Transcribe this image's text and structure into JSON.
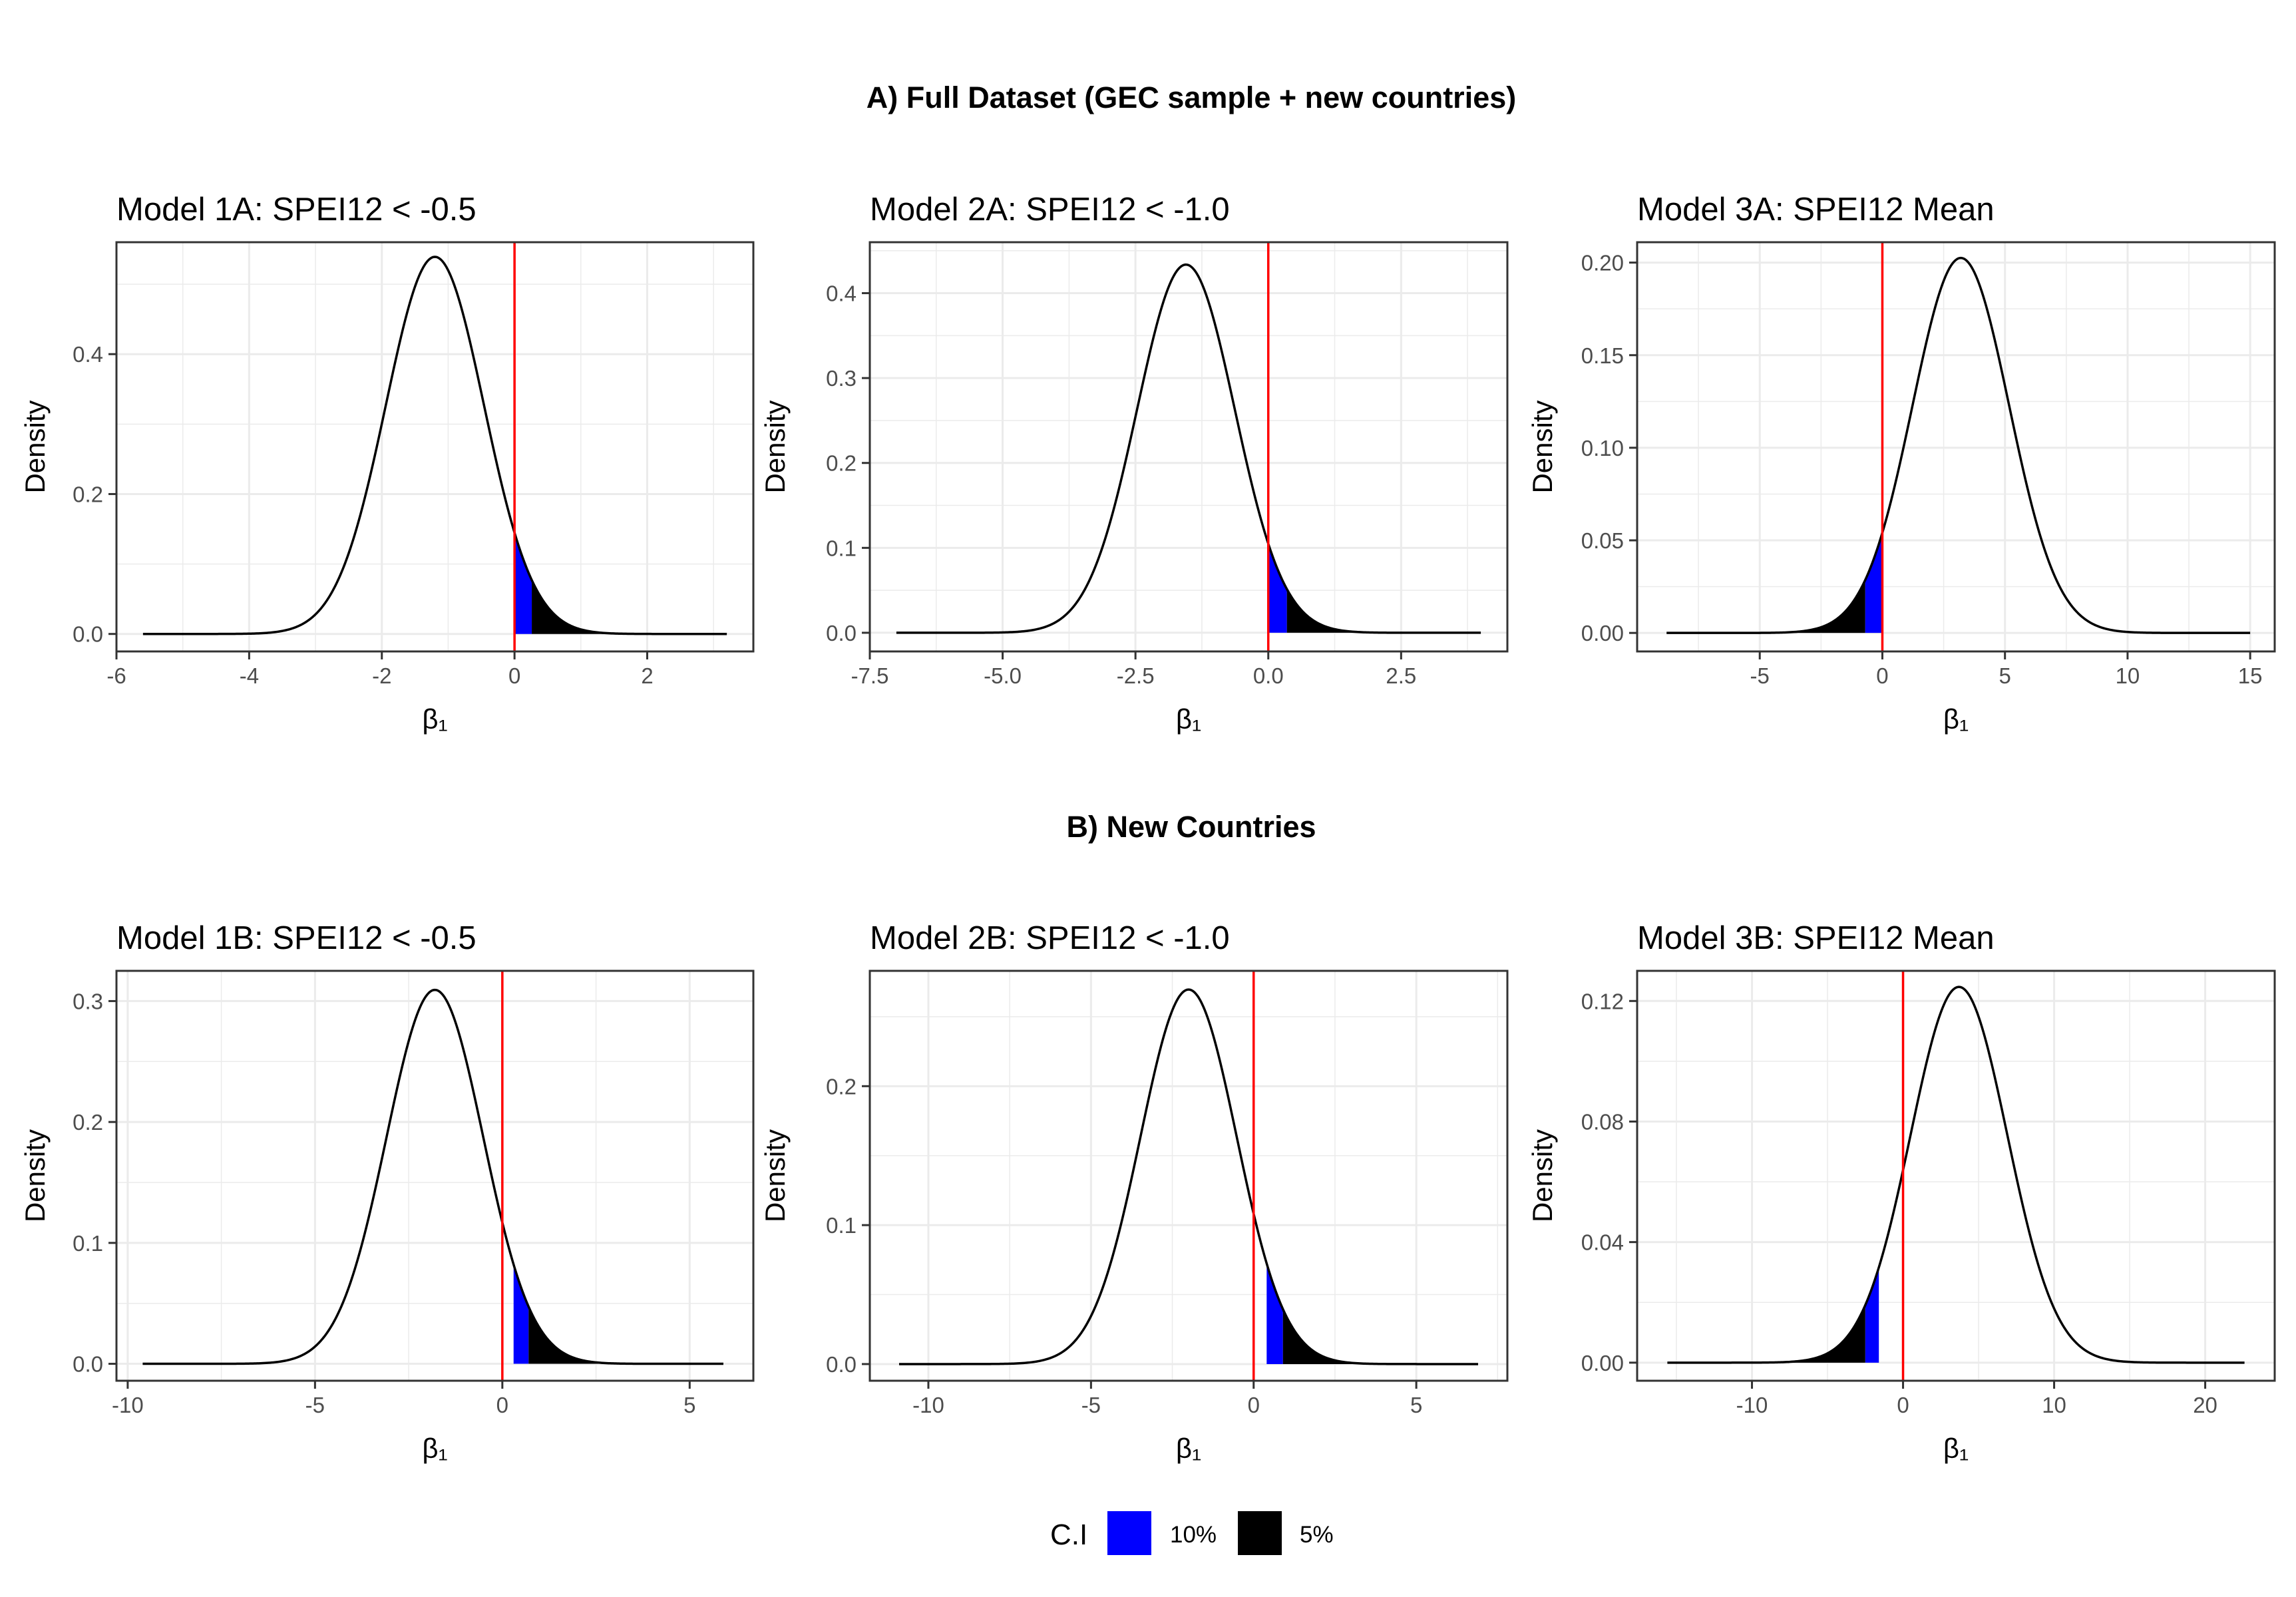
{
  "sections": [
    {
      "title": "A) Full Dataset (GEC sample + new countries)"
    },
    {
      "title": "B) New Countries"
    }
  ],
  "legend": {
    "title": "C.I",
    "items": [
      {
        "label": "10%",
        "color": "#0000ff"
      },
      {
        "label": "5%",
        "color": "#000000"
      }
    ]
  },
  "colors": {
    "curve": "#000000",
    "zero_line": "#ff0000",
    "ci10": "#0000ff",
    "ci5": "#000000",
    "grid": "#ebebeb",
    "frame": "#333333"
  },
  "chart_data": [
    {
      "type": "area",
      "title": "Model 1A: SPEI12 < -0.5",
      "xlabel": "β₁",
      "ylabel": "Density",
      "distribution": "normal",
      "mean": -1.2,
      "sd": 0.74,
      "xlim": [
        -6.0,
        3.6
      ],
      "ylim": [
        -0.025,
        0.56
      ],
      "x_range": [
        -5.6,
        3.2
      ],
      "x_ticks": [
        -6,
        -4,
        -2,
        0,
        2
      ],
      "x_tick_labels": [
        "-6",
        "-4",
        "-2",
        "0",
        "2"
      ],
      "y_ticks": [
        0.0,
        0.2,
        0.4
      ],
      "y_tick_labels": [
        "0.0",
        "0.2",
        "0.4"
      ],
      "vline": 0,
      "ci_10": [
        0.0,
        0.26
      ],
      "ci_5": [
        0.26,
        3.2
      ]
    },
    {
      "type": "area",
      "title": "Model 2A: SPEI12 < -1.0",
      "xlabel": "β₁",
      "ylabel": "Density",
      "distribution": "normal",
      "mean": -1.55,
      "sd": 0.92,
      "xlim": [
        -7.5,
        4.5
      ],
      "ylim": [
        -0.022,
        0.46
      ],
      "x_range": [
        -7.0,
        4.0
      ],
      "x_ticks": [
        -7.5,
        -5.0,
        -2.5,
        0.0,
        2.5
      ],
      "x_tick_labels": [
        "-7.5",
        "-5.0",
        "-2.5",
        "0.0",
        "2.5"
      ],
      "y_ticks": [
        0.0,
        0.1,
        0.2,
        0.3,
        0.4
      ],
      "y_tick_labels": [
        "0.0",
        "0.1",
        "0.2",
        "0.3",
        "0.4"
      ],
      "vline": 0,
      "ci_10": [
        0.0,
        0.35
      ],
      "ci_5": [
        0.35,
        4.0
      ]
    },
    {
      "type": "area",
      "title": "Model 3A: SPEI12 Mean",
      "xlabel": "β₁",
      "ylabel": "Density",
      "distribution": "normal",
      "mean": 3.2,
      "sd": 1.97,
      "xlim": [
        -10,
        16
      ],
      "ylim": [
        -0.01,
        0.211
      ],
      "x_range": [
        -8.8,
        15.0
      ],
      "x_ticks": [
        -5,
        0,
        5,
        10,
        15
      ],
      "x_tick_labels": [
        "-5",
        "0",
        "5",
        "10",
        "15"
      ],
      "y_ticks": [
        0.0,
        0.05,
        0.1,
        0.15,
        0.2
      ],
      "y_tick_labels": [
        "0.00",
        "0.05",
        "0.10",
        "0.15",
        "0.20"
      ],
      "vline": 0,
      "ci_10": [
        -0.7,
        0.0
      ],
      "ci_5": [
        -8.8,
        -0.7
      ]
    },
    {
      "type": "area",
      "title": "Model 1B: SPEI12 < -0.5",
      "xlabel": "β₁",
      "ylabel": "Density",
      "distribution": "normal",
      "mean": -1.8,
      "sd": 1.29,
      "xlim": [
        -10.3,
        6.7
      ],
      "ylim": [
        -0.014,
        0.325
      ],
      "x_range": [
        -9.6,
        5.9
      ],
      "x_ticks": [
        -10,
        -5,
        0,
        5
      ],
      "x_tick_labels": [
        "-10",
        "-5",
        "0",
        "5"
      ],
      "y_ticks": [
        0.0,
        0.1,
        0.2,
        0.3
      ],
      "y_tick_labels": [
        "0.0",
        "0.1",
        "0.2",
        "0.3"
      ],
      "vline": 0,
      "ci_10": [
        0.3,
        0.7
      ],
      "ci_5": [
        0.7,
        5.9
      ]
    },
    {
      "type": "area",
      "title": "Model 2B: SPEI12 < -1.0",
      "xlabel": "β₁",
      "ylabel": "Density",
      "distribution": "normal",
      "mean": -2.0,
      "sd": 1.48,
      "xlim": [
        -11.8,
        7.8
      ],
      "ylim": [
        -0.012,
        0.283
      ],
      "x_range": [
        -10.9,
        6.9
      ],
      "x_ticks": [
        -10,
        -5,
        0,
        5
      ],
      "x_tick_labels": [
        "-10",
        "-5",
        "0",
        "5"
      ],
      "y_ticks": [
        0.0,
        0.1,
        0.2
      ],
      "y_tick_labels": [
        "0.0",
        "0.1",
        "0.2"
      ],
      "vline": 0,
      "ci_10": [
        0.4,
        0.9
      ],
      "ci_5": [
        0.9,
        6.9
      ]
    },
    {
      "type": "area",
      "title": "Model 3B: SPEI12 Mean",
      "xlabel": "β₁",
      "ylabel": "Density",
      "distribution": "normal",
      "mean": 3.7,
      "sd": 3.2,
      "xlim": [
        -17.6,
        24.6
      ],
      "ylim": [
        -0.006,
        0.13
      ],
      "x_range": [
        -15.6,
        22.6
      ],
      "x_ticks": [
        -10,
        0,
        10,
        20
      ],
      "x_tick_labels": [
        "-10",
        "0",
        "10",
        "20"
      ],
      "y_ticks": [
        0.0,
        0.04,
        0.08,
        0.12
      ],
      "y_tick_labels": [
        "0.00",
        "0.04",
        "0.08",
        "0.12"
      ],
      "vline": 0,
      "ci_10": [
        -2.5,
        -1.6
      ],
      "ci_5": [
        -15.6,
        -2.5
      ]
    }
  ]
}
